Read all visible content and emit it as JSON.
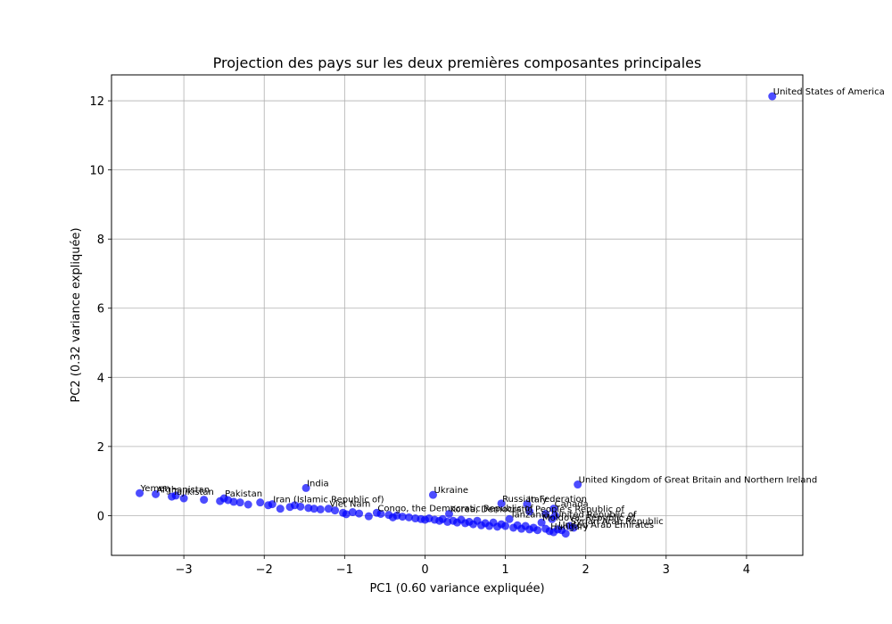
{
  "chart_data": {
    "type": "scatter",
    "title": "Projection des pays sur les deux premières composantes principales",
    "xlabel": "PC1 (0.60 variance expliquée)",
    "ylabel": "PC2 (0.32 variance expliquée)",
    "xlim": [
      -3.9,
      4.7
    ],
    "ylim": [
      -1.15,
      12.75
    ],
    "xticks": [
      -3,
      -2,
      -1,
      0,
      1,
      2,
      3,
      4
    ],
    "xtick_labels": [
      "−3",
      "−2",
      "−1",
      "0",
      "1",
      "2",
      "3",
      "4"
    ],
    "yticks": [
      0,
      2,
      4,
      6,
      8,
      10,
      12
    ],
    "ytick_labels": [
      "0",
      "2",
      "4",
      "6",
      "8",
      "10",
      "12"
    ],
    "grid": true,
    "point_color": "#0000ff",
    "point_alpha": 0.7,
    "points": [
      {
        "x": 4.32,
        "y": 12.13,
        "label": "United States of America"
      },
      {
        "x": 1.9,
        "y": 0.9,
        "label": "United Kingdom of Great Britain and Northern Ireland"
      },
      {
        "x": -1.48,
        "y": 0.8,
        "label": "India"
      },
      {
        "x": 0.1,
        "y": 0.6,
        "label": "Ukraine"
      },
      {
        "x": 0.95,
        "y": 0.35,
        "label": "Russian Federation"
      },
      {
        "x": 1.27,
        "y": 0.33,
        "label": "Italy"
      },
      {
        "x": 1.6,
        "y": 0.2,
        "label": "Canada"
      },
      {
        "x": -3.55,
        "y": 0.65,
        "label": "Yemen"
      },
      {
        "x": -3.35,
        "y": 0.62,
        "label": "Afghanistan"
      },
      {
        "x": -3.15,
        "y": 0.55,
        "label": "Tajikistan"
      },
      {
        "x": -2.5,
        "y": 0.5,
        "label": "Pakistan"
      },
      {
        "x": -1.9,
        "y": 0.33,
        "label": "Iran (Islamic Republic of)"
      },
      {
        "x": -1.2,
        "y": 0.2,
        "label": "Viet Nam"
      },
      {
        "x": -0.6,
        "y": 0.08,
        "label": "Congo, the Democratic Republic of"
      },
      {
        "x": 0.3,
        "y": 0.05,
        "label": "Korea, Democratic People's Republic of"
      },
      {
        "x": 1.05,
        "y": -0.1,
        "label": "Tanzania, United Republic of"
      },
      {
        "x": 1.45,
        "y": -0.2,
        "label": "Moldova, Republic of"
      },
      {
        "x": 1.8,
        "y": -0.3,
        "label": "Syrian Arab Republic"
      },
      {
        "x": 1.65,
        "y": -0.4,
        "label": "United Arab Emirates"
      },
      {
        "x": 1.55,
        "y": -0.45,
        "label": "Hungary"
      },
      {
        "x": -3.1,
        "y": 0.58
      },
      {
        "x": -3.0,
        "y": 0.5
      },
      {
        "x": -2.75,
        "y": 0.46
      },
      {
        "x": -2.55,
        "y": 0.42
      },
      {
        "x": -2.45,
        "y": 0.45
      },
      {
        "x": -2.38,
        "y": 0.4
      },
      {
        "x": -2.3,
        "y": 0.38
      },
      {
        "x": -2.2,
        "y": 0.32
      },
      {
        "x": -2.05,
        "y": 0.38
      },
      {
        "x": -1.95,
        "y": 0.3
      },
      {
        "x": -1.8,
        "y": 0.2
      },
      {
        "x": -1.68,
        "y": 0.25
      },
      {
        "x": -1.62,
        "y": 0.3
      },
      {
        "x": -1.55,
        "y": 0.26
      },
      {
        "x": -1.45,
        "y": 0.22
      },
      {
        "x": -1.38,
        "y": 0.2
      },
      {
        "x": -1.3,
        "y": 0.18
      },
      {
        "x": -1.12,
        "y": 0.15
      },
      {
        "x": -1.02,
        "y": 0.08
      },
      {
        "x": -0.98,
        "y": 0.04
      },
      {
        "x": -0.9,
        "y": 0.1
      },
      {
        "x": -0.82,
        "y": 0.06
      },
      {
        "x": -0.7,
        "y": -0.02
      },
      {
        "x": -0.55,
        "y": 0.05
      },
      {
        "x": -0.45,
        "y": 0.02
      },
      {
        "x": -0.4,
        "y": -0.05
      },
      {
        "x": -0.35,
        "y": 0.0
      },
      {
        "x": -0.28,
        "y": -0.03
      },
      {
        "x": -0.2,
        "y": -0.05
      },
      {
        "x": -0.12,
        "y": -0.08
      },
      {
        "x": -0.05,
        "y": -0.1
      },
      {
        "x": 0.0,
        "y": -0.12
      },
      {
        "x": 0.05,
        "y": -0.08
      },
      {
        "x": 0.12,
        "y": -0.12
      },
      {
        "x": 0.18,
        "y": -0.15
      },
      {
        "x": 0.22,
        "y": -0.1
      },
      {
        "x": 0.28,
        "y": -0.18
      },
      {
        "x": 0.35,
        "y": -0.15
      },
      {
        "x": 0.4,
        "y": -0.2
      },
      {
        "x": 0.45,
        "y": -0.12
      },
      {
        "x": 0.5,
        "y": -0.22
      },
      {
        "x": 0.55,
        "y": -0.18
      },
      {
        "x": 0.6,
        "y": -0.25
      },
      {
        "x": 0.65,
        "y": -0.15
      },
      {
        "x": 0.7,
        "y": -0.28
      },
      {
        "x": 0.75,
        "y": -0.22
      },
      {
        "x": 0.8,
        "y": -0.3
      },
      {
        "x": 0.85,
        "y": -0.2
      },
      {
        "x": 0.9,
        "y": -0.32
      },
      {
        "x": 0.95,
        "y": -0.25
      },
      {
        "x": 1.0,
        "y": -0.3
      },
      {
        "x": 1.1,
        "y": -0.35
      },
      {
        "x": 1.15,
        "y": -0.28
      },
      {
        "x": 1.2,
        "y": -0.38
      },
      {
        "x": 1.25,
        "y": -0.3
      },
      {
        "x": 1.3,
        "y": -0.4
      },
      {
        "x": 1.35,
        "y": -0.35
      },
      {
        "x": 1.4,
        "y": -0.42
      },
      {
        "x": 1.5,
        "y": -0.38
      },
      {
        "x": 1.6,
        "y": -0.48
      },
      {
        "x": 1.7,
        "y": -0.42
      },
      {
        "x": 1.75,
        "y": -0.52
      },
      {
        "x": 1.85,
        "y": -0.35
      },
      {
        "x": 1.3,
        "y": 0.12
      },
      {
        "x": 1.5,
        "y": 0.05
      },
      {
        "x": 1.62,
        "y": 0.0
      },
      {
        "x": 1.58,
        "y": -0.1
      }
    ]
  }
}
